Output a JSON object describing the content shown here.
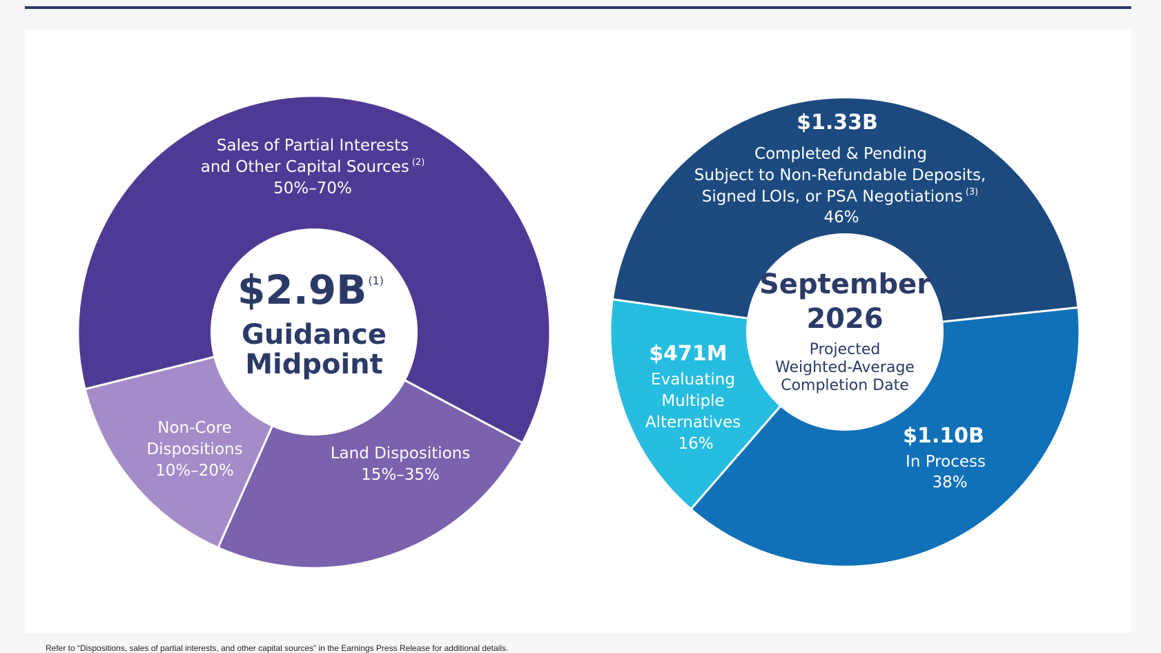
{
  "chart_data": [
    {
      "type": "pie",
      "variant": "donut",
      "center": {
        "value": "$2.9B",
        "superscript": "(1)",
        "label_lines": [
          "Guidance",
          "Midpoint"
        ]
      },
      "slices": [
        {
          "name": "Sales of Partial Interests and Other Capital Sources",
          "lines": [
            "Sales of Partial Interests",
            "and Other Capital Sources"
          ],
          "footnote": "(2)",
          "range": "50%–70%",
          "share": 0.6,
          "color": "#4e3a94"
        },
        {
          "name": "Land Dispositions",
          "lines": [
            "Land Dispositions"
          ],
          "footnote": "",
          "range": "15%–35%",
          "share": 0.25,
          "color": "#7a62ad"
        },
        {
          "name": "Non-Core Dispositions",
          "lines": [
            "Non-Core",
            "Dispositions"
          ],
          "footnote": "",
          "range": "10%–20%",
          "share": 0.15,
          "color": "#a48cc8"
        }
      ]
    },
    {
      "type": "pie",
      "variant": "donut",
      "center": {
        "label_big": [
          "September",
          "2026"
        ],
        "label_lines": [
          "Projected",
          "Weighted-Average",
          "Completion Date"
        ]
      },
      "slices": [
        {
          "name": "Completed & Pending",
          "value_label": "$1.33B",
          "lines": [
            "Completed & Pending",
            "Subject to Non-Refundable Deposits,",
            "Signed LOIs, or PSA Negotiations"
          ],
          "footnote": "(3)",
          "pct": "46%",
          "share": 0.46,
          "color": "#1c4a7f"
        },
        {
          "name": "In Process",
          "value_label": "$1.10B",
          "lines": [
            "In Process"
          ],
          "footnote": "",
          "pct": "38%",
          "share": 0.38,
          "color": "#1070b8"
        },
        {
          "name": "Evaluating Multiple Alternatives",
          "value_label": "$471M",
          "lines": [
            "Evaluating",
            "Multiple",
            "Alternatives"
          ],
          "footnote": "",
          "pct": "16%",
          "share": 0.16,
          "color": "#27bde0"
        }
      ]
    }
  ],
  "footnote": "Refer to “Dispositions, sales of partial interests, and other capital sources” in the Earnings Press Release for additional details."
}
